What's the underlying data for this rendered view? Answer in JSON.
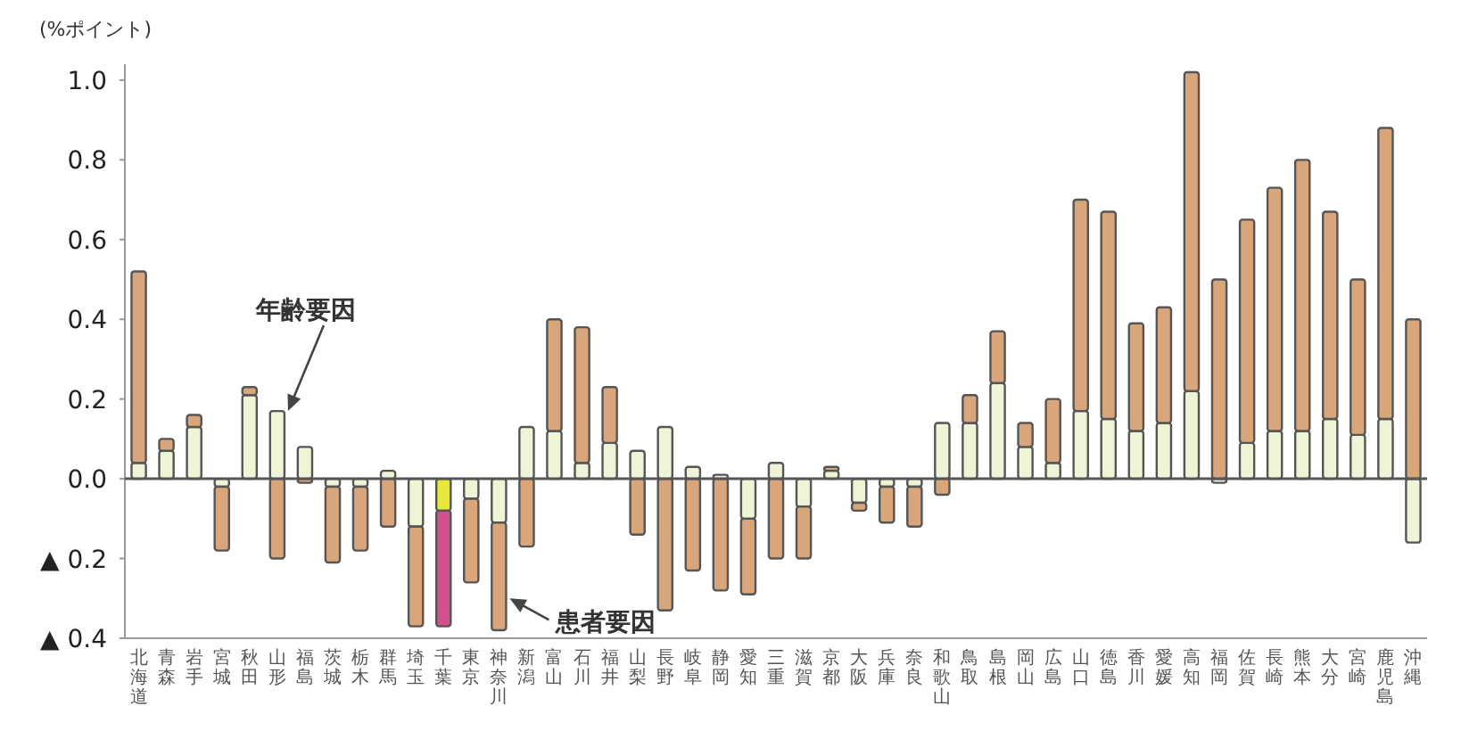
{
  "chart_data": {
    "type": "bar",
    "stacked": true,
    "ylabel": "(%ポイント)",
    "categories": [
      "北海道",
      "青森",
      "岩手",
      "宮城",
      "秋田",
      "山形",
      "福島",
      "茨城",
      "栃木",
      "群馬",
      "埼玉",
      "千葉",
      "東京",
      "神奈川",
      "新潟",
      "富山",
      "石川",
      "福井",
      "山梨",
      "長野",
      "岐阜",
      "静岡",
      "愛知",
      "三重",
      "滋賀",
      "京都",
      "大阪",
      "兵庫",
      "奈良",
      "和歌山",
      "鳥取",
      "島根",
      "岡山",
      "広島",
      "山口",
      "徳島",
      "香川",
      "愛媛",
      "高知",
      "福岡",
      "佐賀",
      "長崎",
      "熊本",
      "大分",
      "宮崎",
      "鹿児島",
      "沖縄"
    ],
    "series": [
      {
        "colors": [
          "#eef5d6",
          "#eef5d6",
          "#eef5d6",
          "#eef5d6",
          "#eef5d6",
          "#eef5d6",
          "#eef5d6",
          "#eef5d6",
          "#eef5d6",
          "#eef5d6",
          "#eef5d6",
          "#e6e83c",
          "#eef5d6",
          "#eef5d6",
          "#eef5d6",
          "#eef5d6",
          "#eef5d6",
          "#eef5d6",
          "#eef5d6",
          "#eef5d6",
          "#eef5d6",
          "#eef5d6",
          "#eef5d6",
          "#eef5d6",
          "#eef5d6",
          "#eef5d6",
          "#eef5d6",
          "#eef5d6",
          "#eef5d6",
          "#eef5d6",
          "#eef5d6",
          "#eef5d6",
          "#eef5d6",
          "#eef5d6",
          "#eef5d6",
          "#eef5d6",
          "#eef5d6",
          "#eef5d6",
          "#eef5d6",
          "#eef5d6",
          "#eef5d6",
          "#eef5d6",
          "#eef5d6",
          "#eef5d6",
          "#eef5d6",
          "#eef5d6",
          "#eef5d6"
        ],
        "values": [
          0.04,
          0.07,
          0.13,
          -0.02,
          0.21,
          0.17,
          0.08,
          -0.02,
          -0.02,
          0.02,
          -0.12,
          -0.08,
          -0.05,
          -0.11,
          0.13,
          0.12,
          0.04,
          0.09,
          0.07,
          0.13,
          0.03,
          0.01,
          -0.1,
          0.04,
          -0.07,
          0.02,
          -0.06,
          -0.02,
          -0.02,
          0.14,
          0.14,
          0.24,
          0.08,
          0.04,
          0.17,
          0.15,
          0.12,
          0.14,
          0.22,
          -0.01,
          0.09,
          0.12,
          0.12,
          0.15,
          0.11,
          0.15,
          -0.16
        ]
      },
      {
        "colors": [
          "#d9a67c",
          "#d9a67c",
          "#d9a67c",
          "#d9a67c",
          "#d9a67c",
          "#d9a67c",
          "#d9a67c",
          "#d9a67c",
          "#d9a67c",
          "#d9a67c",
          "#d9a67c",
          "#d2508c",
          "#d9a67c",
          "#d9a67c",
          "#d9a67c",
          "#d9a67c",
          "#d9a67c",
          "#d9a67c",
          "#d9a67c",
          "#d9a67c",
          "#d9a67c",
          "#d9a67c",
          "#d9a67c",
          "#d9a67c",
          "#d9a67c",
          "#d9a67c",
          "#d9a67c",
          "#d9a67c",
          "#d9a67c",
          "#d9a67c",
          "#d9a67c",
          "#d9a67c",
          "#d9a67c",
          "#d9a67c",
          "#d9a67c",
          "#d9a67c",
          "#d9a67c",
          "#d9a67c",
          "#d9a67c",
          "#d9a67c",
          "#d9a67c",
          "#d9a67c",
          "#d9a67c",
          "#d9a67c",
          "#d9a67c",
          "#d9a67c",
          "#d9a67c"
        ],
        "values": [
          0.48,
          0.03,
          0.03,
          -0.16,
          0.02,
          -0.2,
          -0.01,
          -0.19,
          -0.16,
          -0.12,
          -0.25,
          -0.29,
          -0.21,
          -0.27,
          -0.17,
          0.28,
          0.34,
          0.14,
          -0.14,
          -0.33,
          -0.23,
          -0.28,
          -0.19,
          -0.2,
          -0.13,
          0.01,
          -0.02,
          -0.09,
          -0.1,
          -0.04,
          0.07,
          0.13,
          0.06,
          0.16,
          0.53,
          0.52,
          0.27,
          0.29,
          0.8,
          0.5,
          0.56,
          0.61,
          0.68,
          0.52,
          0.39,
          0.73,
          0.4
        ]
      }
    ],
    "ylim": [
      -0.4,
      1.04
    ],
    "yticks": [
      {
        "value": -0.4,
        "label": "▲ 0.4"
      },
      {
        "value": -0.2,
        "label": "▲ 0.2"
      },
      {
        "value": 0.0,
        "label": "0.0"
      },
      0.2,
      0.4,
      0.6,
      0.8,
      {
        "value": 1.0,
        "label": "1.0"
      }
    ],
    "ref_lines": [
      {
        "axis": "y",
        "value": 0,
        "color": "#555555"
      }
    ],
    "annotations": [
      {
        "text": "年齢要因",
        "x": "山形",
        "y": 0.17
      },
      {
        "text": "患者要因",
        "x": "神奈川",
        "y": -0.3
      }
    ],
    "grid": false
  }
}
